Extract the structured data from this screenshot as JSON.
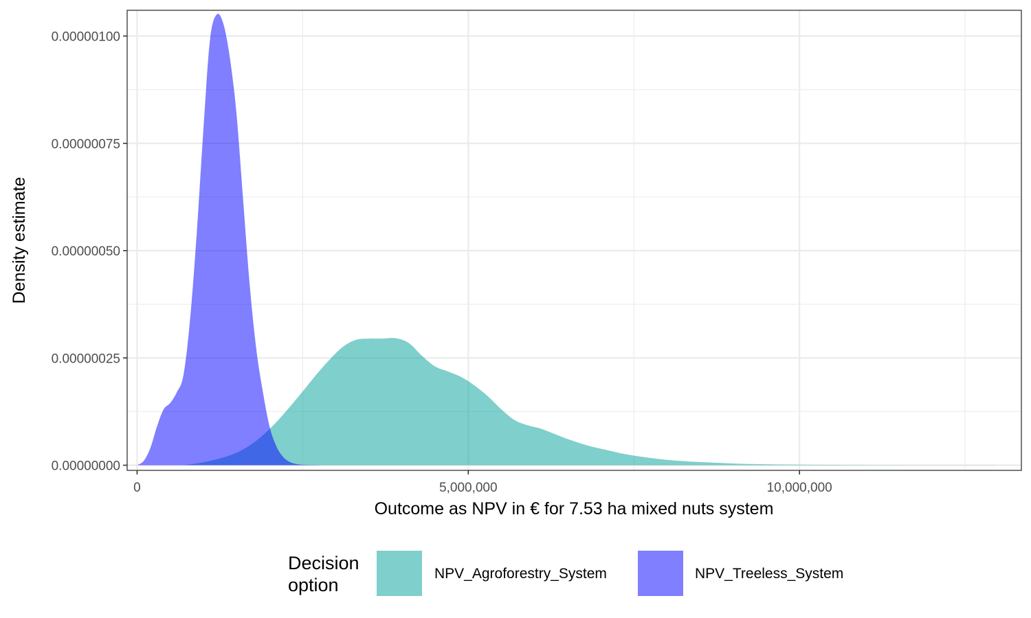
{
  "chart_data": {
    "type": "area",
    "subtype": "density",
    "xlabel": "Outcome as NPV in € for 7.53 ha mixed nuts system",
    "ylabel": "Density estimate",
    "xlim": [
      -150000,
      13350000
    ],
    "ylim": [
      -1.2e-08,
      1.06e-06
    ],
    "x_ticks": [
      0,
      5000000,
      10000000
    ],
    "x_tick_labels": [
      "0",
      "5,000,000",
      "10,000,000"
    ],
    "y_ticks": [
      0,
      2.5e-07,
      5e-07,
      7.5e-07,
      1e-06
    ],
    "y_tick_labels": [
      "0.00000000",
      "0.00000025",
      "0.00000050",
      "0.00000075",
      "0.00000100"
    ],
    "grid": true,
    "legend": {
      "title": "Decision\noption",
      "title_lines": [
        "Decision",
        "option"
      ],
      "position": "bottom"
    },
    "series": [
      {
        "name": "NPV_Agroforestry_System",
        "color": "#00A09A",
        "fill": "#7FCDCC",
        "x": [
          700000,
          900000,
          1100000,
          1300000,
          1500000,
          1700000,
          1900000,
          2100000,
          2300000,
          2500000,
          2700000,
          2900000,
          3100000,
          3300000,
          3500000,
          3700000,
          3900000,
          4100000,
          4300000,
          4500000,
          4700000,
          4900000,
          5100000,
          5300000,
          5500000,
          5700000,
          5900000,
          6100000,
          6300000,
          6500000,
          6800000,
          7100000,
          7400000,
          7800000,
          8200000,
          8700000,
          9200000,
          9800000,
          10500000,
          11200000,
          12000000,
          13000000
        ],
        "y": [
          0,
          4e-09,
          1e-08,
          1.8e-08,
          2.9e-08,
          4.6e-08,
          7e-08,
          1e-07,
          1.35e-07,
          1.72e-07,
          2.1e-07,
          2.45e-07,
          2.75e-07,
          2.92e-07,
          2.95e-07,
          2.95e-07,
          2.96e-07,
          2.85e-07,
          2.55e-07,
          2.3e-07,
          2.18e-07,
          2.05e-07,
          1.85e-07,
          1.6e-07,
          1.3e-07,
          1.05e-07,
          9.3e-08,
          8.5e-08,
          7.3e-08,
          6.1e-08,
          4.6e-08,
          3.5e-08,
          2.5e-08,
          1.6e-08,
          1e-08,
          6e-09,
          3e-09,
          1.5e-09,
          8e-10,
          4e-10,
          2e-10,
          0
        ]
      },
      {
        "name": "NPV_Treeless_System",
        "color": "#0000FF",
        "fill": "#8080FF",
        "x": [
          0,
          100000,
          200000,
          300000,
          400000,
          500000,
          600000,
          700000,
          800000,
          900000,
          1000000,
          1100000,
          1200000,
          1300000,
          1400000,
          1500000,
          1600000,
          1700000,
          1800000,
          1900000,
          2000000,
          2100000,
          2200000,
          2300000,
          2400000,
          2500000,
          2600000,
          2700000,
          2800000,
          2900000,
          3000000
        ],
        "y": [
          0,
          1e-08,
          4e-08,
          9e-08,
          1.3e-07,
          1.45e-07,
          1.7e-07,
          2.1e-07,
          3.4e-07,
          5.4e-07,
          7.8e-07,
          9.9e-07,
          1.05e-06,
          1.03e-06,
          9.5e-07,
          8.2e-07,
          6.2e-07,
          4.2e-07,
          2.7e-07,
          1.7e-07,
          9e-08,
          4.5e-08,
          2e-08,
          8e-09,
          3e-09,
          1.2e-09,
          6e-10,
          3e-10,
          1e-10,
          5e-11,
          0
        ]
      }
    ]
  }
}
